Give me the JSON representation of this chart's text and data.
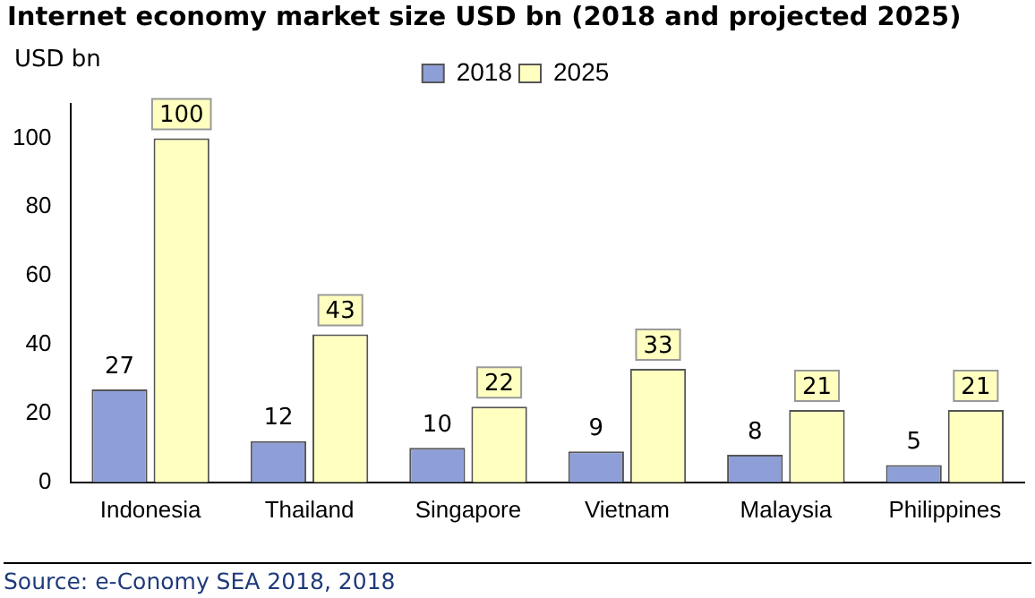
{
  "chart_data": {
    "type": "bar",
    "title": "Internet economy market size USD bn (2018 and projected 2025)",
    "ylabel": "USD bn",
    "categories": [
      "Indonesia",
      "Thailand",
      "Singapore",
      "Vietnam",
      "Malaysia",
      "Philippines"
    ],
    "series": [
      {
        "name": "2018",
        "color": "#8e9fd8",
        "values": [
          27,
          12,
          10,
          9,
          8,
          5
        ]
      },
      {
        "name": "2025",
        "color": "#ffffc0",
        "values": [
          100,
          43,
          22,
          33,
          21,
          21
        ]
      }
    ],
    "ylim": [
      0,
      110
    ],
    "yticks": [
      0,
      20,
      40,
      60,
      80,
      100
    ],
    "grid": false,
    "legend": "top",
    "data_labels": true,
    "annotations": [
      "Source: e-Conomy SEA 2018, 2018"
    ]
  }
}
